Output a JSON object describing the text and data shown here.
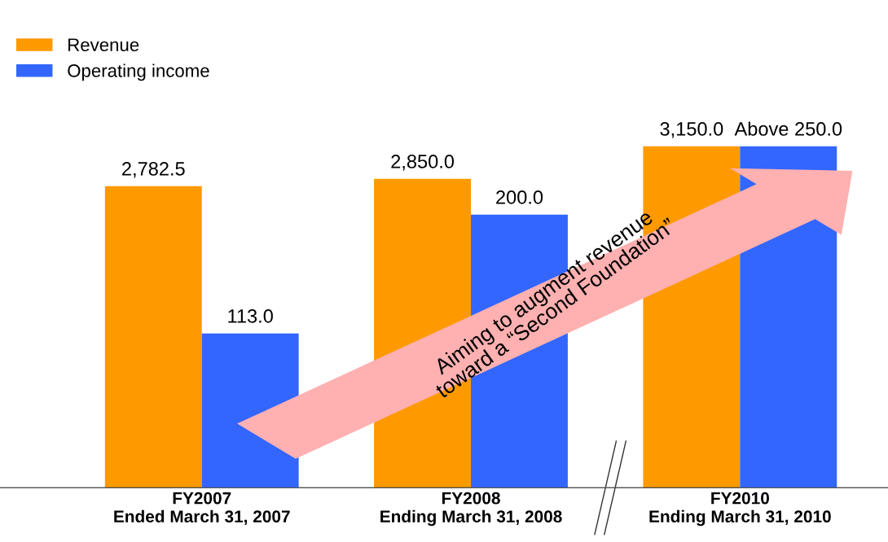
{
  "chart_data": {
    "type": "bar",
    "categories": [
      "FY2007\nEnded March 31, 2007",
      "FY2008\nEnding March 31, 2008",
      "FY2010\nEnding March 31, 2010"
    ],
    "series": [
      {
        "name": "Revenue",
        "color": "#ff9900",
        "values": [
          2782.5,
          2850.0,
          3150.0
        ],
        "value_labels": [
          "2,782.5",
          "2,850.0",
          "3,150.0"
        ]
      },
      {
        "name": "Operating income",
        "color": "#3366ff",
        "values": [
          113.0,
          200.0,
          250.0
        ],
        "axis": "y2",
        "value_labels": [
          "113.0",
          "200.0",
          "Above 250.0"
        ]
      }
    ],
    "annotations": [
      "Aiming to augment revenue\ntoward a “Second Foundation”"
    ],
    "legend": "top left",
    "grid": false,
    "tick_labels": "x"
  }
}
